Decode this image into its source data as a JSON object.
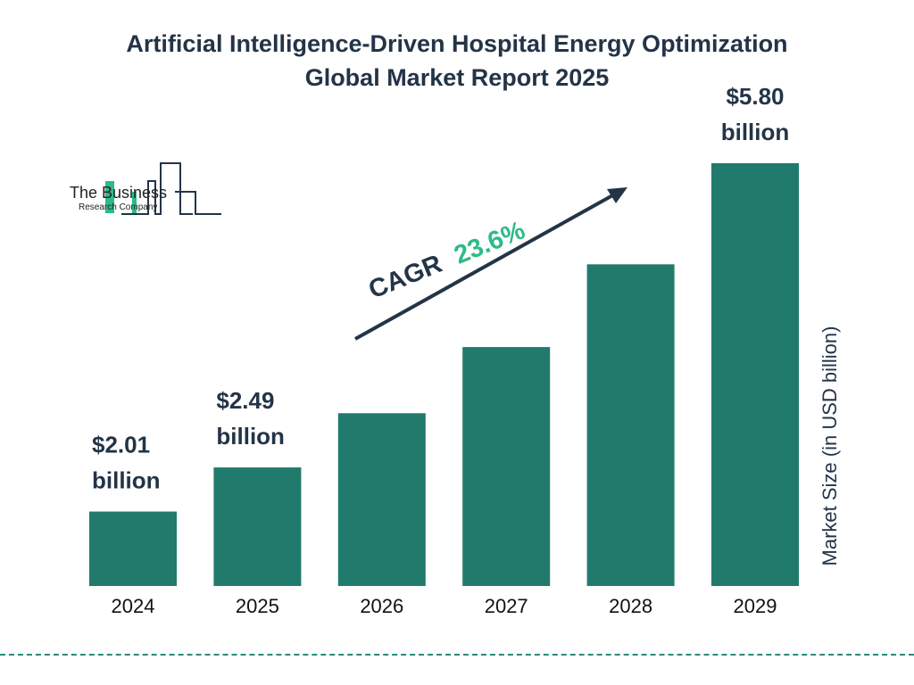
{
  "title_lines": [
    "Artificial Intelligence-Driven Hospital Energy Optimization",
    "Global Market Report 2025"
  ],
  "logo": {
    "line1": "The Business",
    "line2": "Research Company"
  },
  "chart_data": {
    "type": "bar",
    "categories": [
      "2024",
      "2025",
      "2026",
      "2027",
      "2028",
      "2029"
    ],
    "values": [
      2.01,
      2.49,
      3.08,
      3.8,
      4.7,
      5.8
    ],
    "data_labels": [
      [
        "$2.01",
        "billion"
      ],
      [
        "$2.49",
        "billion"
      ],
      null,
      null,
      null,
      [
        "$5.80",
        "billion"
      ]
    ],
    "ylabel": "Market Size (in USD billion)",
    "xlabel": "",
    "ylim": [
      1.2,
      5.8
    ],
    "grid": false,
    "annotation": {
      "label": "CAGR",
      "value": "23.6%"
    },
    "colors": {
      "bar": "#217b6c",
      "text": "#233447",
      "cagr_value": "#2dbb87",
      "arrow": "#233447"
    }
  }
}
